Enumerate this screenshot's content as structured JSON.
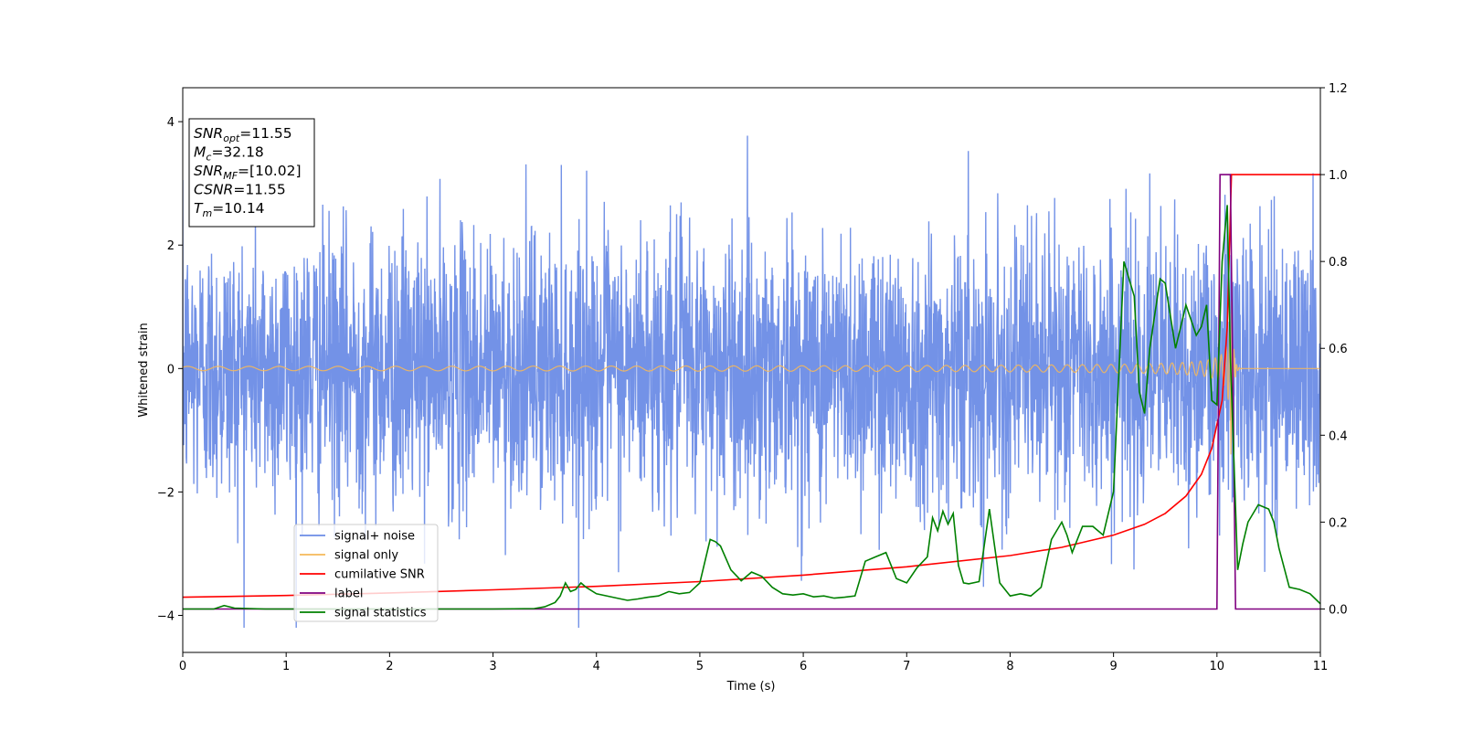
{
  "chart_data": {
    "type": "line",
    "xlabel": "Time (s)",
    "ylabel": "Whitened strain",
    "xlim": [
      0,
      11
    ],
    "ylim": [
      -4.6,
      4.55
    ],
    "y2lim": [
      -0.1,
      1.2
    ],
    "x_ticks": [
      0,
      1,
      2,
      3,
      4,
      5,
      6,
      7,
      8,
      9,
      10,
      11
    ],
    "y_ticks": [
      -4,
      -2,
      0,
      2,
      4
    ],
    "y2_ticks": [
      "0.0",
      "0.2",
      "0.4",
      "0.6",
      "0.8",
      "1.0",
      "1.2"
    ],
    "grid": false,
    "legend_position": "lower-left",
    "annotation": {
      "lines": [
        {
          "sym": "SNR",
          "sub": "opt",
          "val": "=11.55"
        },
        {
          "sym": "M",
          "sub": "c",
          "val": "=32.18"
        },
        {
          "sym": "SNR",
          "sub": "MF",
          "val": "=[10.02]"
        },
        {
          "sym": "CSNR",
          "sub": "",
          "val": "=11.55"
        },
        {
          "sym": "T",
          "sub": "m",
          "val": "=10.14"
        }
      ]
    },
    "series": [
      {
        "name": "signal+ noise",
        "axis": "left",
        "color": "#6b8ce6",
        "description": "whitened noisy strain, approximately gaussian with sigma ~1.1, spanning -4.2 to 4.2 over 0-11 s",
        "stats": {
          "sigma": 1.1,
          "min": -4.2,
          "max": 4.2
        }
      },
      {
        "name": "signal only",
        "axis": "left",
        "color": "#f5b85a",
        "description": "chirp signal centered at 0, amplitude growing to ~1.4 at merger t=10.14 s",
        "stats": {
          "peak_amplitude": 1.4,
          "merger_time": 10.14
        }
      },
      {
        "name": "cumilative SNR",
        "axis": "right",
        "color": "#ff0000",
        "x": [
          0,
          1,
          2,
          3,
          4,
          5,
          6,
          7,
          8,
          8.5,
          9,
          9.3,
          9.5,
          9.7,
          9.85,
          9.95,
          10.05,
          10.1,
          10.14,
          11
        ],
        "y": [
          0.027,
          0.031,
          0.037,
          0.044,
          0.052,
          0.063,
          0.078,
          0.097,
          0.123,
          0.142,
          0.17,
          0.195,
          0.22,
          0.26,
          0.31,
          0.37,
          0.48,
          0.65,
          1.0,
          1.0
        ]
      },
      {
        "name": "label",
        "axis": "right",
        "color": "#800080",
        "x": [
          0,
          10.0,
          10.03,
          10.13,
          10.18,
          11
        ],
        "y": [
          0,
          0,
          1,
          1,
          0,
          0
        ]
      },
      {
        "name": "signal statistics",
        "axis": "right",
        "color": "#008000",
        "x": [
          0,
          0.3,
          0.4,
          0.5,
          0.8,
          1.0,
          2.0,
          2.5,
          3.0,
          3.4,
          3.5,
          3.6,
          3.65,
          3.7,
          3.75,
          3.8,
          3.85,
          3.9,
          4.0,
          4.2,
          4.3,
          4.4,
          4.5,
          4.6,
          4.7,
          4.8,
          4.9,
          5.0,
          5.1,
          5.15,
          5.2,
          5.3,
          5.4,
          5.5,
          5.6,
          5.7,
          5.8,
          5.9,
          6.0,
          6.1,
          6.2,
          6.3,
          6.4,
          6.5,
          6.6,
          6.7,
          6.8,
          6.9,
          7.0,
          7.1,
          7.2,
          7.25,
          7.3,
          7.35,
          7.4,
          7.45,
          7.5,
          7.55,
          7.6,
          7.7,
          7.8,
          7.9,
          8.0,
          8.1,
          8.2,
          8.3,
          8.4,
          8.5,
          8.55,
          8.6,
          8.7,
          8.8,
          8.9,
          9.0,
          9.1,
          9.2,
          9.25,
          9.3,
          9.35,
          9.4,
          9.45,
          9.5,
          9.6,
          9.7,
          9.8,
          9.85,
          9.9,
          9.95,
          10.0,
          10.05,
          10.1,
          10.13,
          10.2,
          10.25,
          10.3,
          10.4,
          10.5,
          10.55,
          10.6,
          10.7,
          10.8,
          10.9,
          11.0
        ],
        "y": [
          0.0,
          0.0,
          0.008,
          0.002,
          0.0,
          0.0,
          0.0,
          0.0,
          0.0,
          0.001,
          0.005,
          0.015,
          0.03,
          0.06,
          0.04,
          0.045,
          0.06,
          0.05,
          0.035,
          0.025,
          0.02,
          0.023,
          0.027,
          0.03,
          0.04,
          0.035,
          0.038,
          0.06,
          0.16,
          0.155,
          0.145,
          0.09,
          0.065,
          0.085,
          0.075,
          0.05,
          0.035,
          0.032,
          0.035,
          0.028,
          0.03,
          0.025,
          0.027,
          0.03,
          0.11,
          0.12,
          0.13,
          0.07,
          0.06,
          0.095,
          0.12,
          0.21,
          0.18,
          0.225,
          0.195,
          0.22,
          0.1,
          0.06,
          0.058,
          0.063,
          0.23,
          0.06,
          0.03,
          0.035,
          0.03,
          0.05,
          0.16,
          0.2,
          0.17,
          0.13,
          0.19,
          0.19,
          0.17,
          0.27,
          0.8,
          0.72,
          0.5,
          0.45,
          0.6,
          0.68,
          0.76,
          0.75,
          0.6,
          0.7,
          0.63,
          0.65,
          0.7,
          0.48,
          0.47,
          0.8,
          0.93,
          0.58,
          0.09,
          0.15,
          0.2,
          0.24,
          0.23,
          0.2,
          0.14,
          0.05,
          0.045,
          0.035,
          0.012
        ]
      }
    ],
    "legend": [
      "signal+ noise",
      "signal only",
      "cumilative SNR",
      "label",
      "signal statistics"
    ]
  },
  "colors": {
    "noise": "#6b8ce6",
    "signal": "#f5b85a",
    "csnr": "#ff0000",
    "label": "#800080",
    "stats": "#008000"
  }
}
